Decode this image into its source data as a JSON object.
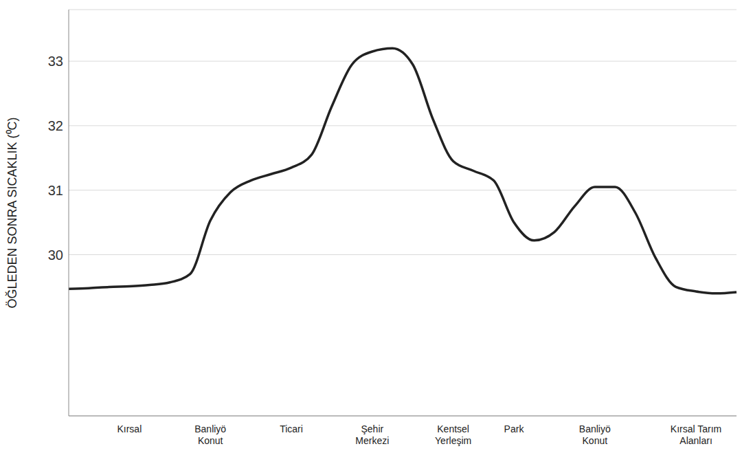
{
  "chart_data": {
    "type": "line",
    "y_label": "ÖĞLEDEN SONRA SICAKLIK (⁰C)",
    "categories": [
      null,
      null,
      null,
      "Kırsal",
      null,
      null,
      null,
      "Banliyö Konut",
      null,
      null,
      null,
      "Ticari",
      null,
      null,
      null,
      "Şehir Merkezi",
      null,
      null,
      null,
      "Kentsel Yerleşim",
      null,
      null,
      "Park",
      null,
      null,
      null,
      "Banliyö Konut",
      null,
      null,
      null,
      null,
      "Kırsal Tarım Alanları",
      null,
      null
    ],
    "values": [
      29.47,
      29.48,
      29.5,
      29.51,
      29.53,
      29.57,
      29.7,
      30.53,
      30.97,
      31.15,
      31.25,
      31.35,
      31.55,
      32.3,
      32.95,
      33.15,
      33.2,
      32.95,
      32.1,
      31.45,
      31.3,
      31.15,
      30.5,
      30.22,
      30.35,
      30.75,
      31.05,
      31.05,
      30.65,
      29.95,
      29.5,
      29.43,
      29.4,
      29.42
    ],
    "color": "#222222",
    "ylim": [
      27.5,
      33.8
    ],
    "yticks": [
      30,
      31,
      32,
      33
    ],
    "grid": true
  }
}
